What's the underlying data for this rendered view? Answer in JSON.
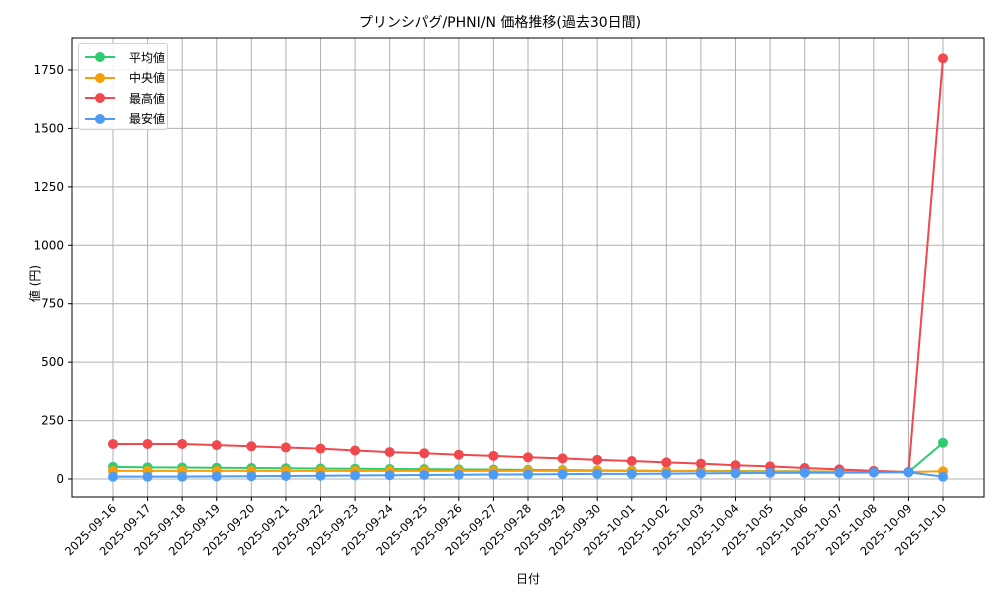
{
  "chart_data": {
    "type": "line",
    "title": "プリンシパグ/PHNI/N 価格推移(過去30日間)",
    "xlabel": "日付",
    "ylabel": "値 (円)",
    "ylim": [
      -75,
      1890
    ],
    "yticks": [
      0,
      250,
      500,
      750,
      1000,
      1250,
      1500,
      1750
    ],
    "grid": true,
    "legend_position": "upper left",
    "categories": [
      "2025-09-16",
      "2025-09-17",
      "2025-09-18",
      "2025-09-19",
      "2025-09-20",
      "2025-09-21",
      "2025-09-22",
      "2025-09-23",
      "2025-09-24",
      "2025-09-25",
      "2025-09-26",
      "2025-09-27",
      "2025-09-28",
      "2025-09-29",
      "2025-09-30",
      "2025-10-01",
      "2025-10-02",
      "2025-10-03",
      "2025-10-04",
      "2025-10-05",
      "2025-10-06",
      "2025-10-07",
      "2025-10-08",
      "2025-10-09",
      "2025-10-10"
    ],
    "series": [
      {
        "name": "平均値",
        "color": "#2ecc71",
        "values": [
          52,
          50,
          49,
          48,
          47,
          46,
          45,
          44,
          43,
          42,
          41,
          40,
          39,
          38,
          37,
          36,
          35,
          35,
          34,
          33,
          33,
          32,
          31,
          30,
          155
        ]
      },
      {
        "name": "中央値",
        "color": "#f5a00a",
        "values": [
          35,
          35,
          35,
          35,
          35,
          35,
          35,
          35,
          35,
          35,
          35,
          35,
          35,
          35,
          35,
          34,
          34,
          34,
          33,
          33,
          32,
          32,
          31,
          30,
          33
        ]
      },
      {
        "name": "最高値",
        "color": "#f0484d",
        "values": [
          150,
          150,
          150,
          145,
          140,
          135,
          130,
          122,
          115,
          110,
          104,
          99,
          93,
          88,
          82,
          77,
          71,
          66,
          59,
          54,
          47,
          41,
          35,
          30,
          1800
        ]
      },
      {
        "name": "最安値",
        "color": "#4d9bf5",
        "values": [
          10,
          10,
          10,
          11,
          12,
          13,
          14,
          15,
          16,
          17,
          18,
          19,
          20,
          21,
          22,
          22,
          23,
          24,
          25,
          26,
          27,
          27,
          28,
          29,
          10
        ]
      }
    ]
  }
}
